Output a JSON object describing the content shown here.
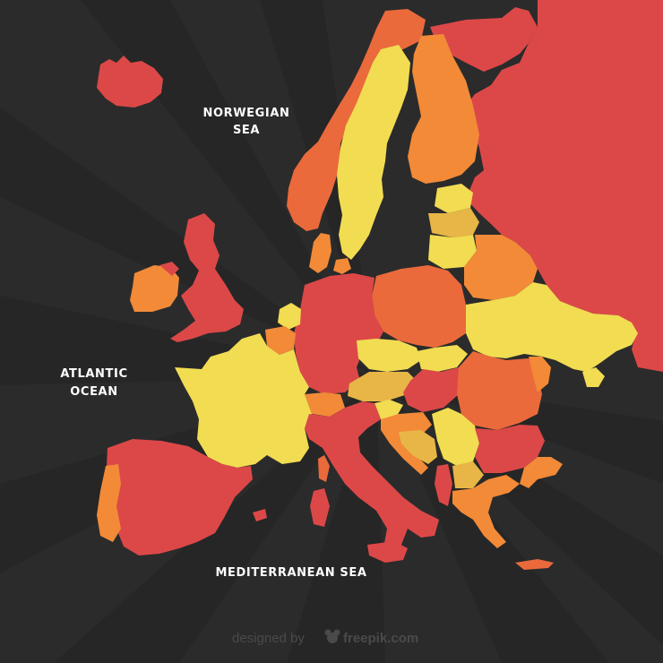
{
  "colors": {
    "background": "#2b2b2b",
    "ray": "#262626",
    "red": "#dc4848",
    "orange_red": "#ea6a3c",
    "orange": "#f28a38",
    "yellow": "#f2dc52",
    "gold": "#e8b646",
    "label": "#ffffff",
    "attribution": "#4a4a4a"
  },
  "labels": {
    "norwegian_sea_1": "NORWEGIAN",
    "norwegian_sea_2": "SEA",
    "atlantic_ocean_1": "ATLANTIC",
    "atlantic_ocean_2": "OCEAN",
    "mediterranean_sea": "MEDITERRANEAN SEA"
  },
  "attribution": {
    "designed_by": "designed by",
    "brand": "freepik.com"
  }
}
